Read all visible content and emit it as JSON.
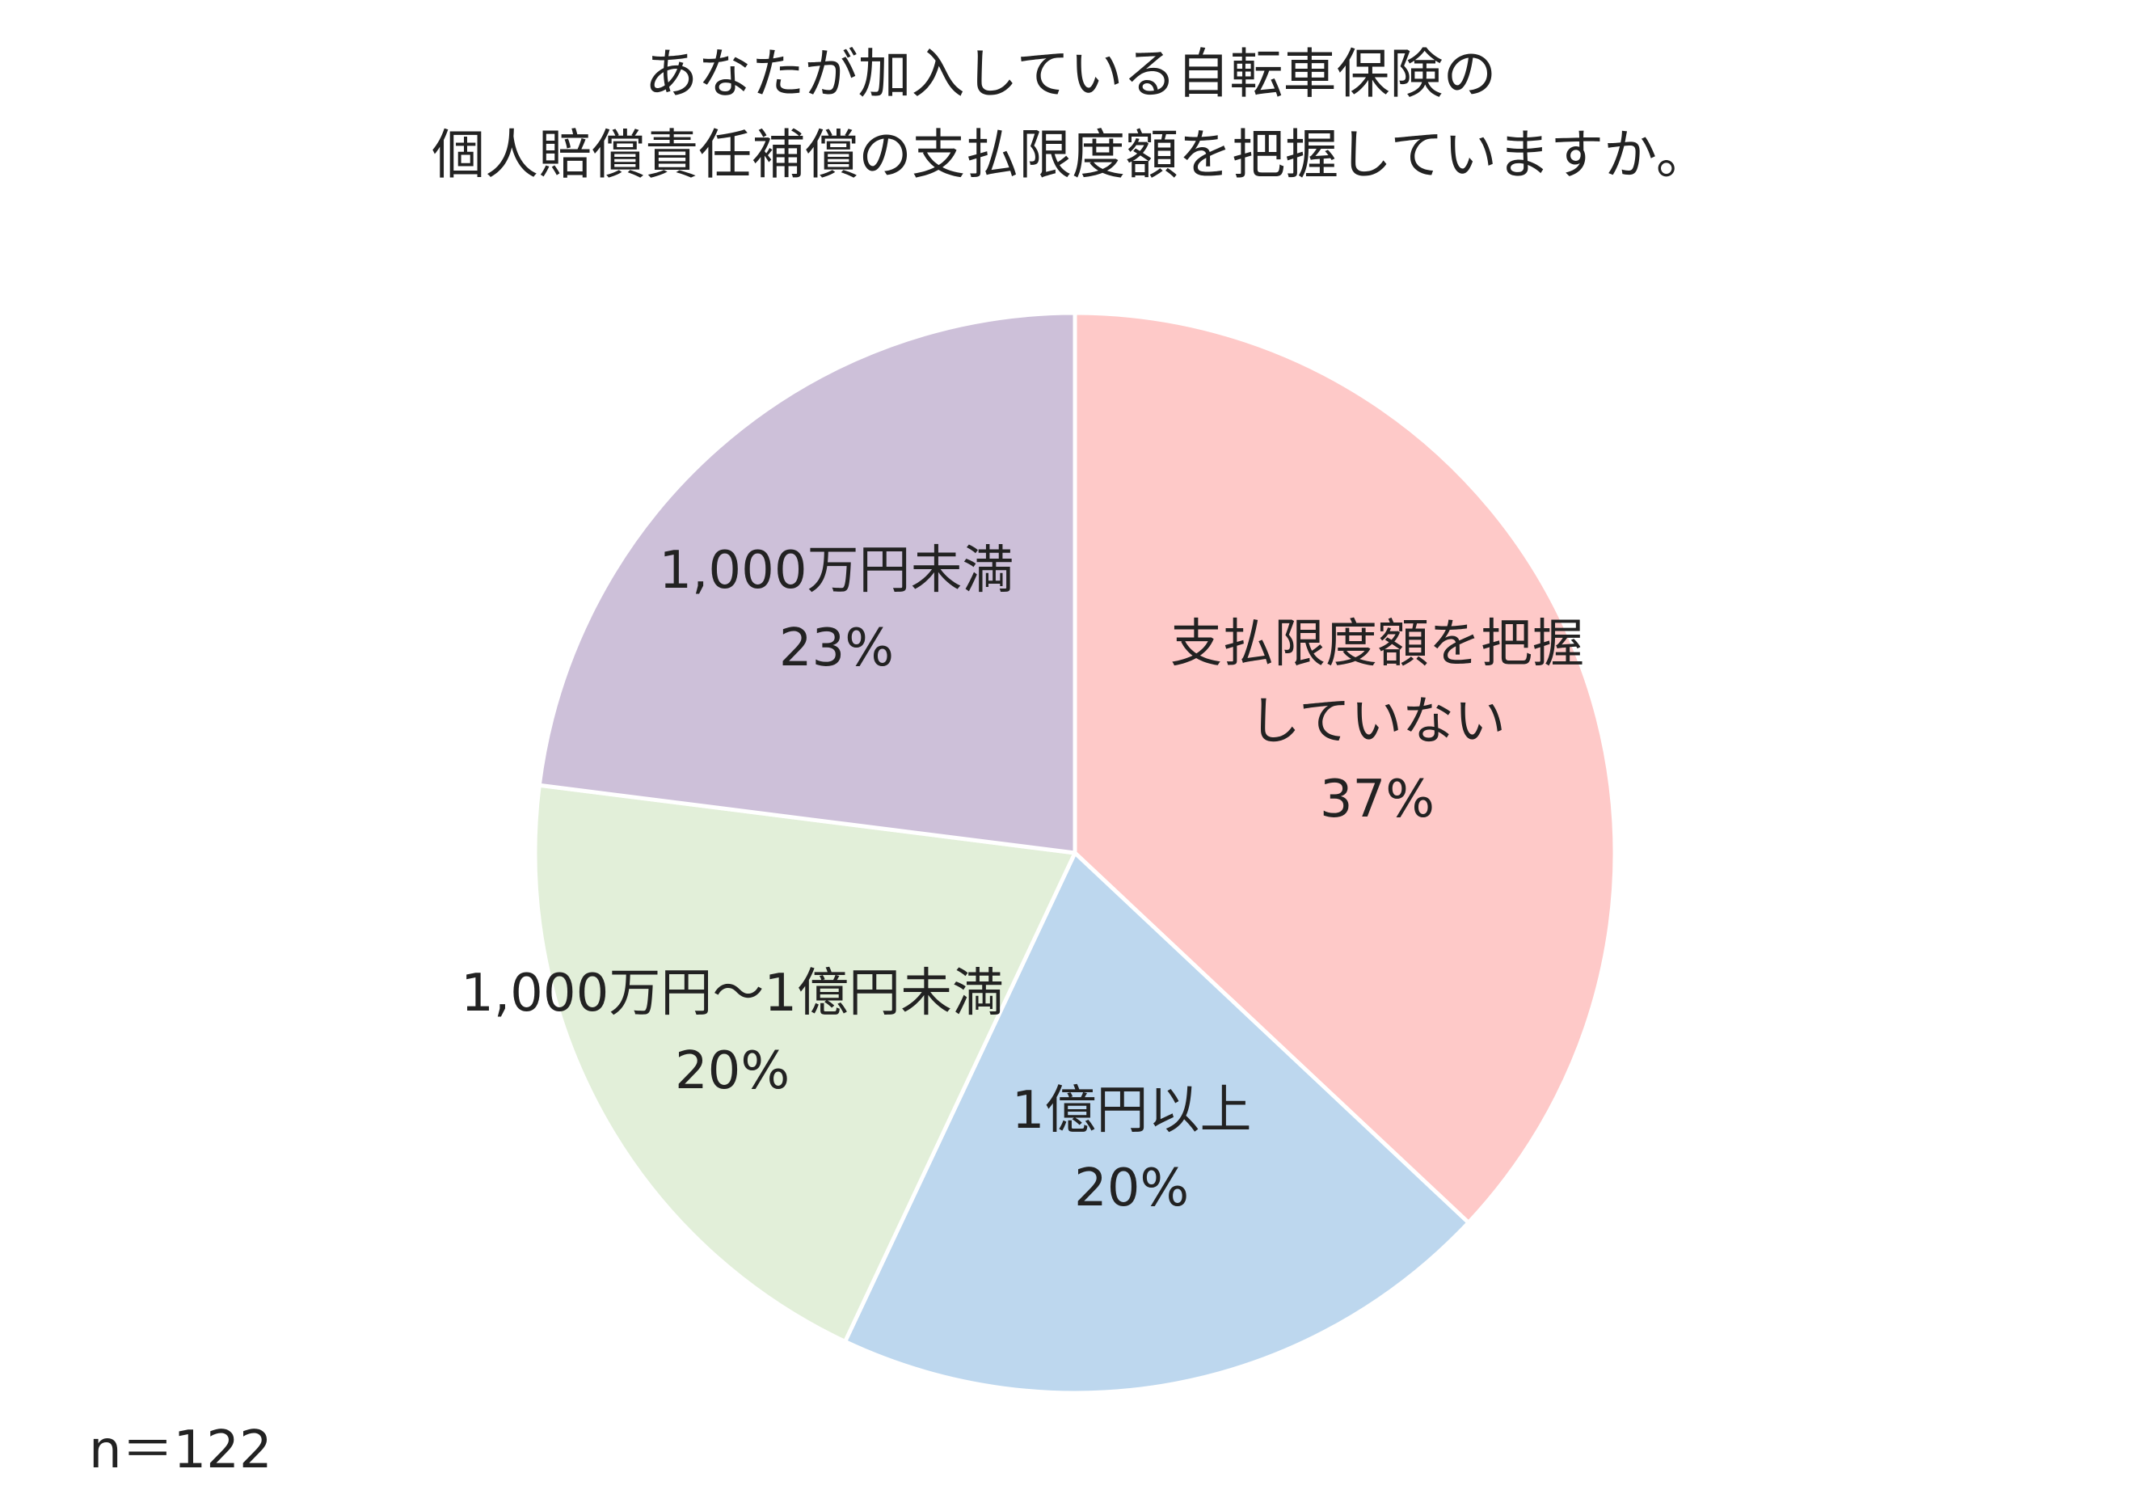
{
  "chart_data": {
    "type": "pie",
    "title_lines": [
      "あなたが加入している自転車保険の",
      "個人賠償責任補償の支払限度額を把握していますか。"
    ],
    "slices": [
      {
        "label_lines": [
          "支払限度額を把握",
          "していない"
        ],
        "value_label": "37%",
        "value": 37,
        "color": "#fec9c8"
      },
      {
        "label_lines": [
          "1億円以上"
        ],
        "value_label": "20%",
        "value": 20,
        "color": "#bdd7ee"
      },
      {
        "label_lines": [
          "1,000万円～1億円未満"
        ],
        "value_label": "20%",
        "value": 20,
        "color": "#e2efd9"
      },
      {
        "label_lines": [
          "1,000万円未満"
        ],
        "value_label": "23%",
        "value": 23,
        "color": "#cdc0d9"
      }
    ],
    "sample_size": "n＝122",
    "legend": "none"
  }
}
